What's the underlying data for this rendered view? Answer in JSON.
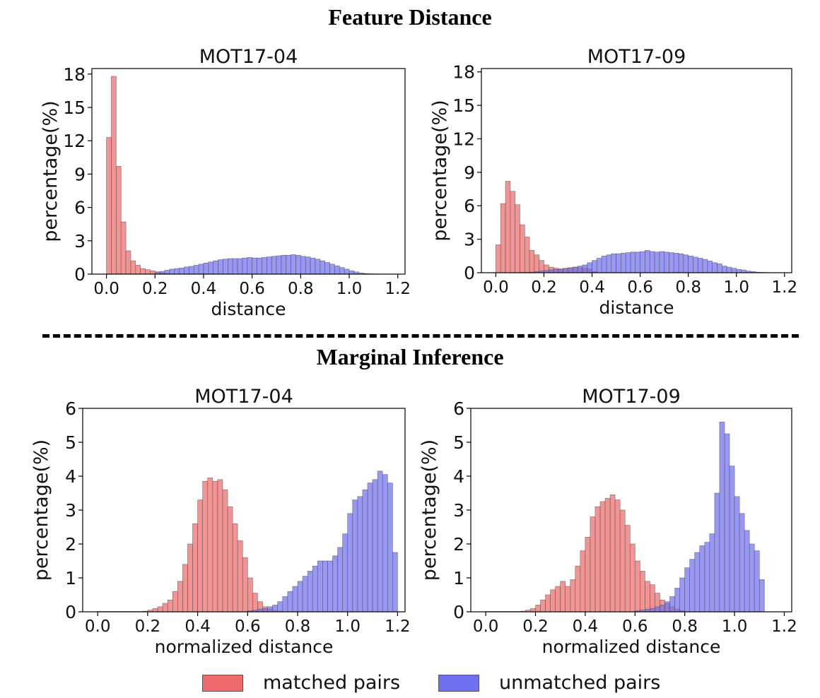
{
  "section_titles": {
    "top": "Feature Distance",
    "bottom": "Marginal Inference"
  },
  "legend": {
    "matched_label": "matched pairs",
    "unmatched_label": "unmatched pairs",
    "matched_color": "#ee6b6b",
    "unmatched_color": "#6f6ff0"
  },
  "chart_data": [
    {
      "type": "bar",
      "title": "MOT17-04",
      "xlabel": "distance",
      "ylabel": "percentage(%)",
      "xlim": [
        -0.06,
        1.23
      ],
      "ylim": [
        0,
        18.5
      ],
      "xticks": [
        0.0,
        0.2,
        0.4,
        0.6,
        0.8,
        1.0,
        1.2
      ],
      "yticks": [
        0,
        3,
        6,
        9,
        12,
        15,
        18
      ],
      "bin_width": 0.02,
      "series": [
        {
          "name": "matched pairs",
          "x0": 0.0,
          "values": [
            12.3,
            17.8,
            9.7,
            4.7,
            2.1,
            1.2,
            0.8,
            0.5,
            0.4,
            0.3,
            0.2,
            0.1,
            0.05
          ]
        },
        {
          "name": "unmatched pairs",
          "x0": 0.2,
          "values": [
            0.2,
            0.25,
            0.35,
            0.45,
            0.5,
            0.55,
            0.65,
            0.7,
            0.8,
            0.9,
            1.0,
            1.1,
            1.2,
            1.3,
            1.35,
            1.4,
            1.4,
            1.4,
            1.45,
            1.5,
            1.45,
            1.45,
            1.5,
            1.55,
            1.6,
            1.65,
            1.7,
            1.7,
            1.75,
            1.7,
            1.6,
            1.55,
            1.45,
            1.35,
            1.2,
            1.05,
            0.9,
            0.75,
            0.6,
            0.45,
            0.3,
            0.2,
            0.1,
            0.05,
            0.03,
            0.02,
            0.01,
            0.01
          ]
        }
      ]
    },
    {
      "type": "bar",
      "title": "MOT17-09",
      "xlabel": "distance",
      "ylabel": "percentage(%)",
      "xlim": [
        -0.06,
        1.23
      ],
      "ylim": [
        0,
        18.3
      ],
      "xticks": [
        0.0,
        0.2,
        0.4,
        0.6,
        0.8,
        1.0,
        1.2
      ],
      "yticks": [
        0,
        3,
        6,
        9,
        12,
        15,
        18
      ],
      "bin_width": 0.02,
      "series": [
        {
          "name": "matched pairs",
          "x0": 0.0,
          "values": [
            2.5,
            6.2,
            8.2,
            7.3,
            6.1,
            4.3,
            3.2,
            2.0,
            1.6,
            1.1,
            0.7,
            0.5,
            0.4,
            0.35,
            0.4,
            0.45,
            0.5,
            0.45,
            0.4,
            0.35,
            0.1
          ]
        },
        {
          "name": "unmatched pairs",
          "x0": 0.1,
          "values": [
            0.02,
            0.03,
            0.05,
            0.1,
            0.15,
            0.2,
            0.25,
            0.3,
            0.3,
            0.35,
            0.4,
            0.5,
            0.6,
            0.7,
            0.9,
            1.1,
            1.3,
            1.5,
            1.6,
            1.7,
            1.7,
            1.75,
            1.8,
            1.85,
            1.85,
            1.9,
            2.0,
            1.9,
            1.85,
            1.9,
            1.85,
            1.8,
            1.75,
            1.7,
            1.6,
            1.5,
            1.4,
            1.3,
            1.2,
            1.05,
            0.9,
            0.8,
            0.6,
            0.5,
            0.4,
            0.3,
            0.25,
            0.15,
            0.1,
            0.05,
            0.03,
            0.02
          ]
        }
      ]
    },
    {
      "type": "bar",
      "title": "MOT17-04",
      "xlabel": "normalized distance",
      "ylabel": "percentage(%)",
      "xlim": [
        -0.06,
        1.23
      ],
      "ylim": [
        0,
        6.0
      ],
      "xticks": [
        0.0,
        0.2,
        0.4,
        0.6,
        0.8,
        1.0,
        1.2
      ],
      "yticks": [
        0,
        1,
        2,
        3,
        4,
        5,
        6
      ],
      "bin_width": 0.02,
      "series": [
        {
          "name": "matched pairs",
          "x0": 0.0,
          "values": [
            0.01,
            0.01,
            0.01,
            0.01,
            0.01,
            0.01,
            0.01,
            0.01,
            0.01,
            0.02,
            0.05,
            0.1,
            0.15,
            0.25,
            0.35,
            0.6,
            0.9,
            1.4,
            2.0,
            2.6,
            3.3,
            3.85,
            3.95,
            3.85,
            3.9,
            3.6,
            3.1,
            2.6,
            2.1,
            1.6,
            1.0,
            0.55,
            0.3,
            0.15,
            0.08,
            0.04,
            0.02
          ]
        },
        {
          "name": "unmatched pairs",
          "x0": 0.6,
          "values": [
            0.03,
            0.05,
            0.08,
            0.1,
            0.15,
            0.2,
            0.3,
            0.45,
            0.6,
            0.75,
            0.9,
            1.05,
            1.2,
            1.35,
            1.5,
            1.5,
            1.5,
            1.65,
            1.9,
            2.3,
            2.9,
            3.3,
            3.4,
            3.6,
            3.8,
            3.9,
            4.15,
            4.05,
            3.8,
            1.75
          ]
        }
      ]
    },
    {
      "type": "bar",
      "title": "MOT17-09",
      "xlabel": "normalized distance",
      "ylabel": "percentage(%)",
      "xlim": [
        -0.06,
        1.23
      ],
      "ylim": [
        0,
        6.0
      ],
      "xticks": [
        0.0,
        0.2,
        0.4,
        0.6,
        0.8,
        1.0,
        1.2
      ],
      "yticks": [
        0,
        1,
        2,
        3,
        4,
        5,
        6
      ],
      "bin_width": 0.02,
      "series": [
        {
          "name": "matched pairs",
          "x0": 0.0,
          "values": [
            0.01,
            0.01,
            0.01,
            0.01,
            0.01,
            0.01,
            0.01,
            0.02,
            0.05,
            0.1,
            0.2,
            0.35,
            0.5,
            0.65,
            0.75,
            0.9,
            0.75,
            0.95,
            1.35,
            1.8,
            2.2,
            2.8,
            3.1,
            3.25,
            3.35,
            3.45,
            3.3,
            3.0,
            2.55,
            2.0,
            1.5,
            1.2,
            0.9,
            0.8,
            0.55,
            0.35,
            0.25,
            0.15,
            0.08,
            0.04
          ]
        },
        {
          "name": "unmatched pairs",
          "x0": 0.6,
          "values": [
            0.03,
            0.05,
            0.08,
            0.1,
            0.15,
            0.2,
            0.3,
            0.45,
            0.7,
            1.0,
            1.3,
            1.55,
            1.75,
            1.95,
            2.05,
            2.3,
            3.5,
            5.6,
            5.25,
            4.3,
            3.4,
            2.9,
            2.4,
            2.0,
            1.8,
            0.95
          ]
        }
      ]
    }
  ]
}
